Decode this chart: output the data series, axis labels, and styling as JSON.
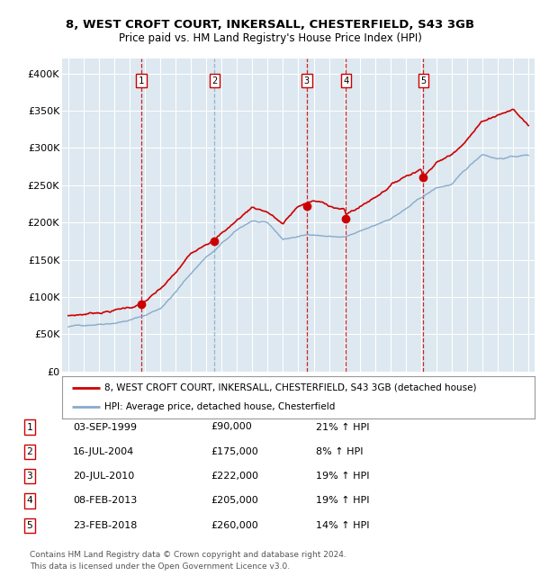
{
  "title1": "8, WEST CROFT COURT, INKERSALL, CHESTERFIELD, S43 3GB",
  "title2": "Price paid vs. HM Land Registry's House Price Index (HPI)",
  "sale_dates_num": [
    1999.75,
    2004.54,
    2010.55,
    2013.1,
    2018.14
  ],
  "sale_prices": [
    90000,
    175000,
    222000,
    205000,
    260000
  ],
  "sale_labels": [
    "1",
    "2",
    "3",
    "4",
    "5"
  ],
  "sale_vline_styles": [
    "dashed_red",
    "dashed_blue",
    "dashed_red",
    "dashed_red",
    "dashed_red"
  ],
  "sale_info": [
    [
      "1",
      "03-SEP-1999",
      "£90,000",
      "21% ↑ HPI"
    ],
    [
      "2",
      "16-JUL-2004",
      "£175,000",
      "8% ↑ HPI"
    ],
    [
      "3",
      "20-JUL-2010",
      "£222,000",
      "19% ↑ HPI"
    ],
    [
      "4",
      "08-FEB-2013",
      "£205,000",
      "19% ↑ HPI"
    ],
    [
      "5",
      "23-FEB-2018",
      "£260,000",
      "14% ↑ HPI"
    ]
  ],
  "legend_line1": "8, WEST CROFT COURT, INKERSALL, CHESTERFIELD, S43 3GB (detached house)",
  "legend_line2": "HPI: Average price, detached house, Chesterfield",
  "footer1": "Contains HM Land Registry data © Crown copyright and database right 2024.",
  "footer2": "This data is licensed under the Open Government Licence v3.0.",
  "price_line_color": "#cc0000",
  "hpi_line_color": "#88aacc",
  "vline_red_color": "#cc0000",
  "vline_blue_color": "#88aacc",
  "plot_bg": "#dde8f0",
  "ylim": [
    0,
    420000
  ],
  "ytick_vals": [
    0,
    50000,
    100000,
    150000,
    200000,
    250000,
    300000,
    350000,
    400000
  ],
  "ytick_labels": [
    "£0",
    "£50K",
    "£100K",
    "£150K",
    "£200K",
    "£250K",
    "£300K",
    "£350K",
    "£400K"
  ],
  "xlim_start": 1994.6,
  "xlim_end": 2025.4
}
